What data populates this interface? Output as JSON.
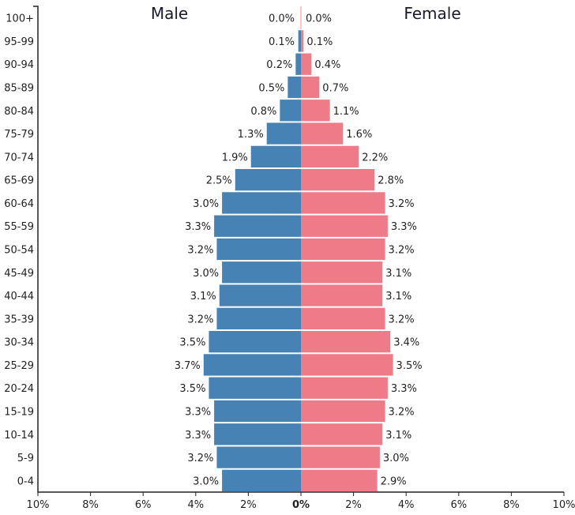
{
  "chart_data": {
    "type": "bar",
    "orientation": "horizontal-diverging",
    "categories": [
      "100+",
      "95-99",
      "90-94",
      "85-89",
      "80-84",
      "75-79",
      "70-74",
      "65-69",
      "60-64",
      "55-59",
      "50-54",
      "45-49",
      "40-44",
      "35-39",
      "30-34",
      "25-29",
      "20-24",
      "15-19",
      "10-14",
      "5-9",
      "0-4"
    ],
    "series": [
      {
        "name": "Male",
        "color": "#4682b4",
        "values": [
          0.0,
          0.1,
          0.2,
          0.5,
          0.8,
          1.3,
          1.9,
          2.5,
          3.0,
          3.3,
          3.2,
          3.0,
          3.1,
          3.2,
          3.5,
          3.7,
          3.5,
          3.3,
          3.3,
          3.2,
          3.0
        ]
      },
      {
        "name": "Female",
        "color": "#ef7a88",
        "values": [
          0.0,
          0.1,
          0.4,
          0.7,
          1.1,
          1.6,
          2.2,
          2.8,
          3.2,
          3.3,
          3.2,
          3.1,
          3.1,
          3.2,
          3.4,
          3.5,
          3.3,
          3.2,
          3.1,
          3.0,
          2.9
        ]
      }
    ],
    "xlim": [
      -10,
      10
    ],
    "x_ticks": [
      "10%",
      "8%",
      "6%",
      "4%",
      "2%",
      "0%",
      "2%",
      "4%",
      "6%",
      "8%",
      "10%"
    ],
    "value_suffix": "%",
    "grid": false,
    "legend": "series names shown as headings above each side"
  }
}
